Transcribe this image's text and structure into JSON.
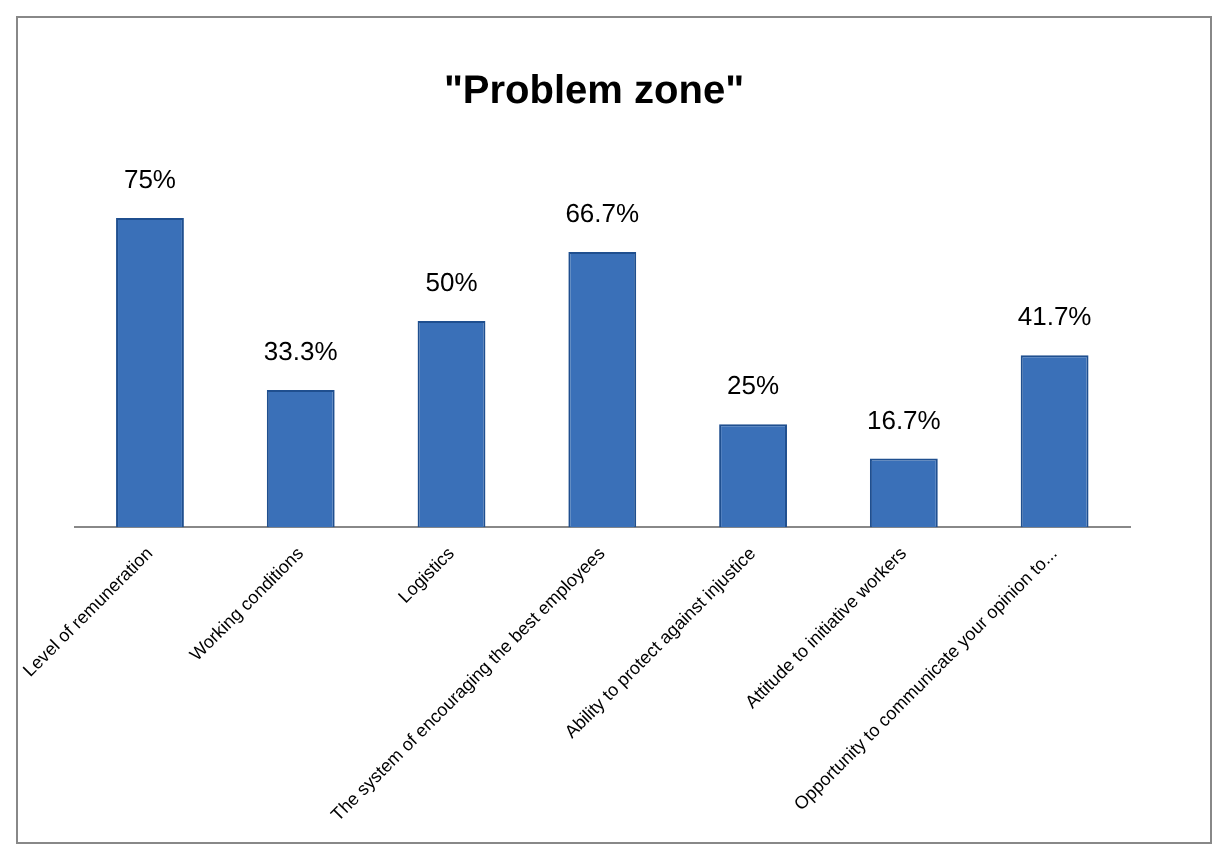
{
  "chart_data": {
    "type": "bar",
    "title": "\"Problem zone\"",
    "categories": [
      "Level of remuneration",
      "Working conditions",
      "Logistics",
      "The system of encouraging the best employees",
      "Ability to protect against injustice",
      "Attitude to initiative workers",
      "Opportunity to communicate your opinion to..."
    ],
    "values": [
      75,
      33.3,
      50,
      66.7,
      25,
      16.7,
      41.7
    ],
    "value_labels": [
      "75%",
      "33.3%",
      "50%",
      "66.7%",
      "25%",
      "16.7%",
      "41.7%"
    ],
    "color": "#3a70b8",
    "grid": false,
    "legend": false
  }
}
